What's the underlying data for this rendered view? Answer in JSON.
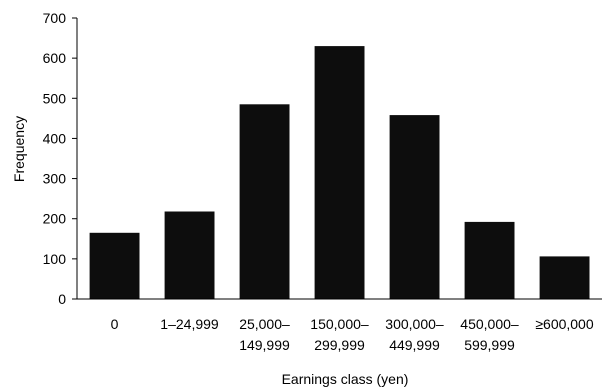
{
  "chart_data": {
    "type": "bar",
    "categories": [
      [
        "0"
      ],
      [
        "1–24,999"
      ],
      [
        "25,000–",
        "149,999"
      ],
      [
        "150,000–",
        "299,999"
      ],
      [
        "300,000–",
        "449,999"
      ],
      [
        "450,000–",
        "599,999"
      ],
      [
        "≥600,000"
      ]
    ],
    "values": [
      165,
      218,
      485,
      630,
      458,
      192,
      106
    ],
    "xlabel": "Earnings class (yen)",
    "ylabel": "Frequency",
    "ylim": [
      0,
      700
    ],
    "yticks": [
      0,
      100,
      200,
      300,
      400,
      500,
      600,
      700
    ],
    "grid": false,
    "legend": "none",
    "bar_color": "#0d0d0d",
    "axis_color": "#000000"
  }
}
